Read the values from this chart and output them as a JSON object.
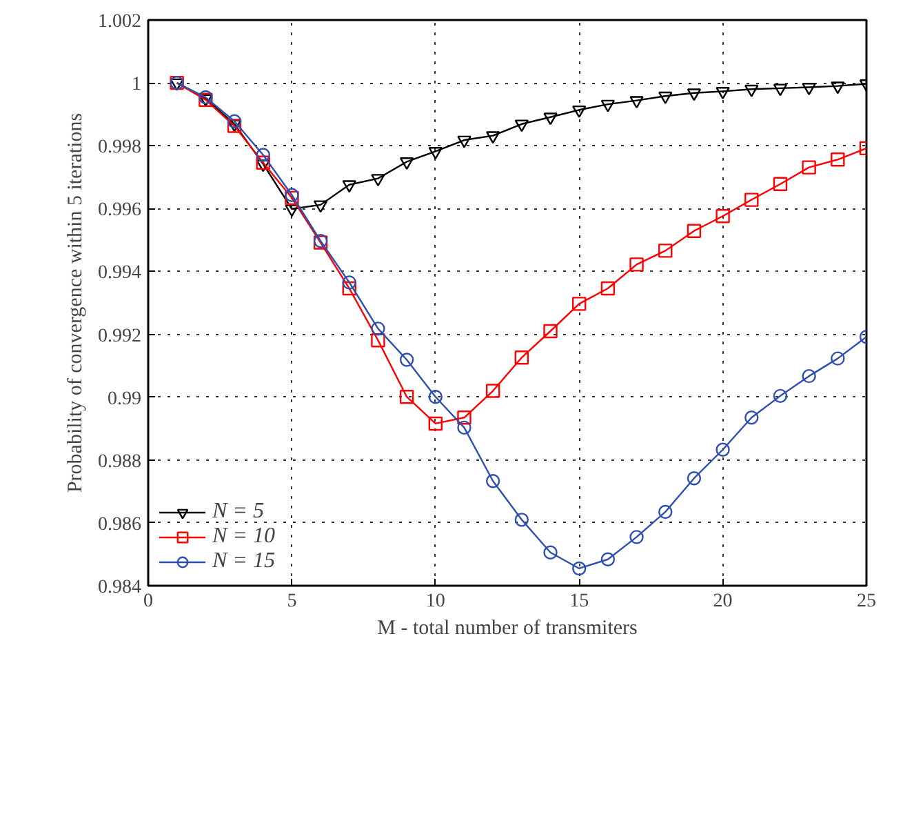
{
  "chart_data": {
    "type": "line",
    "xlabel": "M - total number of transmiters",
    "ylabel": "Probability of convergence within 5 iterations",
    "x": [
      1,
      2,
      3,
      4,
      5,
      6,
      7,
      8,
      9,
      10,
      11,
      12,
      13,
      14,
      15,
      16,
      17,
      18,
      19,
      20,
      21,
      22,
      23,
      24,
      25
    ],
    "series": [
      {
        "name": "N = 5",
        "color": "#000000",
        "marker": "triangle",
        "values": [
          1.0,
          0.9995,
          0.99869,
          0.99742,
          0.99599,
          0.99612,
          0.99676,
          0.99696,
          0.99749,
          0.99782,
          0.99818,
          0.99832,
          0.99869,
          0.99891,
          0.99914,
          0.99932,
          0.99944,
          0.99958,
          0.99968,
          0.99973,
          0.9998,
          0.99983,
          0.99986,
          0.9999,
          0.99997
        ]
      },
      {
        "name": "N = 10",
        "color": "#ff0000",
        "marker": "square",
        "values": [
          1.0,
          0.99946,
          0.99863,
          0.99746,
          0.99634,
          0.99492,
          0.99346,
          0.99181,
          0.99001,
          0.98916,
          0.98935,
          0.9902,
          0.99126,
          0.9921,
          0.99297,
          0.99346,
          0.99422,
          0.99466,
          0.99529,
          0.99576,
          0.99628,
          0.99678,
          0.99731,
          0.99756,
          0.99792
        ]
      },
      {
        "name": "N = 15",
        "color": "#2f4fb0",
        "marker": "circle",
        "values": [
          1.0,
          0.99954,
          0.99878,
          0.99771,
          0.99643,
          0.99497,
          0.99365,
          0.99218,
          0.99119,
          0.99001,
          0.98903,
          0.98733,
          0.9861,
          0.98506,
          0.98455,
          0.98484,
          0.98555,
          0.98635,
          0.98742,
          0.98833,
          0.98935,
          0.99004,
          0.99067,
          0.99123,
          0.99192
        ]
      }
    ],
    "xlim": [
      0,
      25
    ],
    "xticks": [
      0,
      5,
      10,
      15,
      20,
      25
    ],
    "ylim": [
      0.984,
      1.002
    ],
    "yticks": [
      0.984,
      0.986,
      0.988,
      0.99,
      0.992,
      0.994,
      0.996,
      0.998,
      1,
      1.002
    ],
    "grid": true,
    "legend": "bottom left",
    "line_style": "solid"
  }
}
